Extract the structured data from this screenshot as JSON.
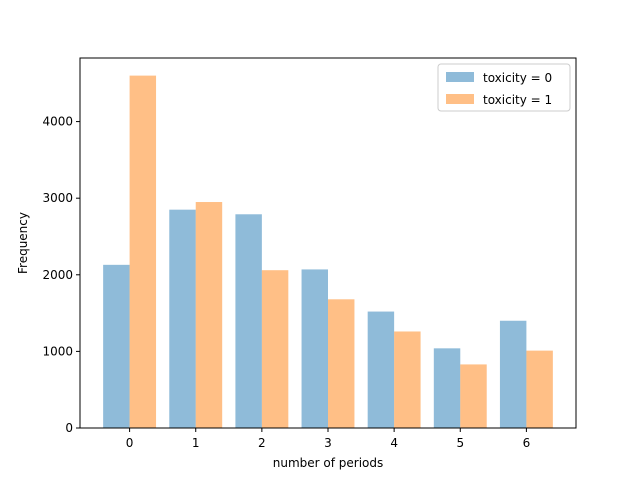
{
  "chart_data": {
    "type": "bar",
    "xlabel": "number of periods",
    "ylabel": "Frequency",
    "categories": [
      "0",
      "1",
      "2",
      "3",
      "4",
      "5",
      "6"
    ],
    "x": [
      0,
      1,
      2,
      3,
      4,
      5,
      6
    ],
    "xlim": [
      -0.75,
      6.75
    ],
    "ylim": [
      0,
      4830
    ],
    "yticks": [
      0,
      1000,
      2000,
      3000,
      4000
    ],
    "ytick_labels": [
      "0",
      "1000",
      "2000",
      "3000",
      "4000"
    ],
    "grid": false,
    "legend": "top-right",
    "series": [
      {
        "name": "toxicity = 0",
        "color": "#1f77b4",
        "alpha": 0.5,
        "values": [
          2130,
          2850,
          2790,
          2070,
          1520,
          1040,
          1400
        ]
      },
      {
        "name": "toxicity = 1",
        "color": "#ff7f0e",
        "alpha": 0.5,
        "values": [
          4600,
          2950,
          2060,
          1680,
          1260,
          830,
          1010
        ]
      }
    ]
  }
}
